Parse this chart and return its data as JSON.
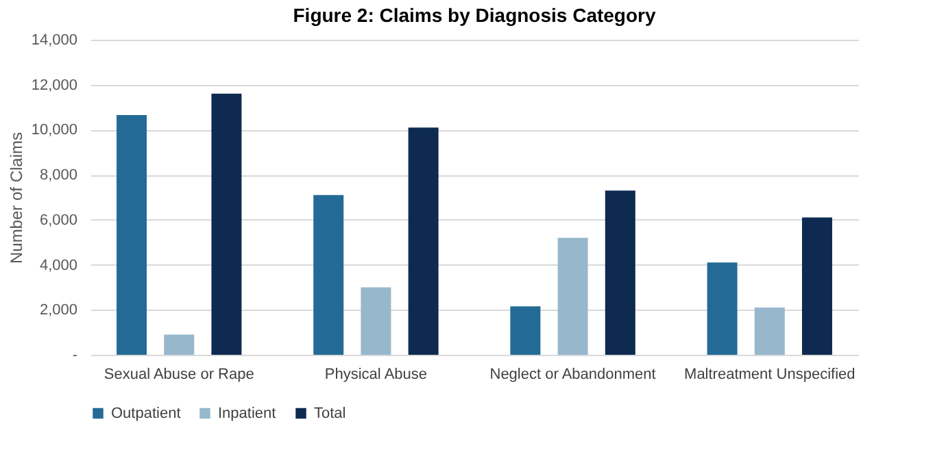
{
  "chart_data": {
    "type": "bar",
    "title": "Figure 2: Claims by Diagnosis Category",
    "ylabel": "Number of Claims",
    "categories": [
      "Sexual Abuse or Rape",
      "Physical Abuse",
      "Neglect or Abandonment",
      "Maltreatment Unspecified"
    ],
    "series": [
      {
        "name": "Outpatient",
        "color": "#236b96",
        "values": [
          10650,
          7100,
          2150,
          4100
        ]
      },
      {
        "name": "Inpatient",
        "color": "#97b7cd",
        "values": [
          900,
          3000,
          5200,
          2100
        ]
      },
      {
        "name": "Total",
        "color": "#0e2a50",
        "values": [
          11600,
          10100,
          7300,
          6100
        ]
      }
    ],
    "ylim": [
      0,
      14000
    ],
    "yticks": [
      {
        "value": 0,
        "label": "-"
      },
      {
        "value": 2000,
        "label": "2,000"
      },
      {
        "value": 4000,
        "label": "4,000"
      },
      {
        "value": 6000,
        "label": "6,000"
      },
      {
        "value": 8000,
        "label": "8,000"
      },
      {
        "value": 10000,
        "label": "10,000"
      },
      {
        "value": 12000,
        "label": "12,000"
      },
      {
        "value": 14000,
        "label": "14,000"
      }
    ],
    "grid": "y",
    "legend": "bottom"
  }
}
